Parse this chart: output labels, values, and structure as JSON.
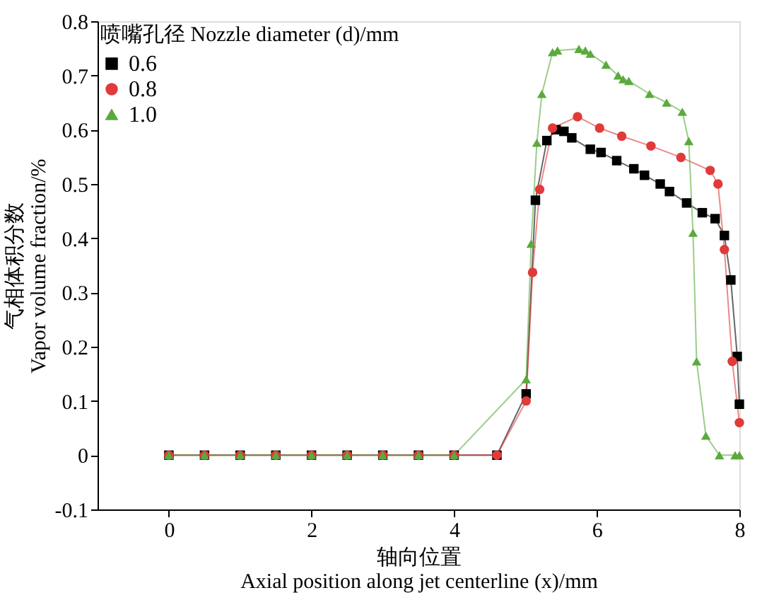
{
  "chart_data": {
    "type": "line",
    "xlabel": "轴向位置\nAxial position along jet centerline (x)/mm",
    "ylabel": "气相体积分数\nVapor volume fraction/%",
    "legend_title": "喷嘴孔径 Nozzle diameter (d)/mm",
    "xlim": [
      -1,
      8
    ],
    "xticks": [
      0,
      2,
      4,
      6,
      8
    ],
    "ylim": [
      -0.1,
      0.8
    ],
    "yticks": [
      -0.1,
      0,
      0.1,
      0.2,
      0.3,
      0.4,
      0.5,
      0.6,
      0.7,
      0.8
    ],
    "grid": false,
    "legend": "top left",
    "line_style": "solid",
    "series": [
      {
        "name": "0.6",
        "color": "#000000",
        "marker": "square",
        "x": [
          0,
          0.5,
          1,
          1.5,
          2,
          2.5,
          3,
          3.5,
          4,
          4.6,
          5.01,
          5.14,
          5.3,
          5.43,
          5.54,
          5.65,
          5.91,
          6.06,
          6.28,
          6.52,
          6.67,
          6.89,
          7.02,
          7.26,
          7.48,
          7.66,
          7.79,
          7.88,
          7.97,
          8.0
        ],
        "values": [
          0,
          0,
          0,
          0,
          0,
          0,
          0,
          0,
          0,
          0,
          0.113,
          0.47,
          0.58,
          0.6,
          0.597,
          0.585,
          0.564,
          0.558,
          0.543,
          0.528,
          0.516,
          0.5,
          0.486,
          0.465,
          0.447,
          0.436,
          0.405,
          0.323,
          0.182,
          0.094
        ]
      },
      {
        "name": "0.8",
        "color": "#e03a3a",
        "marker": "circle",
        "x": [
          0,
          0.5,
          1,
          1.5,
          2,
          2.5,
          3,
          3.5,
          4,
          4.6,
          5.01,
          5.1,
          5.2,
          5.38,
          5.73,
          6.04,
          6.35,
          6.76,
          7.18,
          7.59,
          7.7,
          7.79,
          7.9,
          8.0
        ],
        "values": [
          0,
          0,
          0,
          0,
          0,
          0,
          0,
          0,
          0,
          0,
          0.1,
          0.337,
          0.49,
          0.603,
          0.624,
          0.603,
          0.588,
          0.57,
          0.549,
          0.525,
          0.5,
          0.379,
          0.173,
          0.06
        ]
      },
      {
        "name": "1.0",
        "color": "#5aaa3c",
        "marker": "triangle",
        "x": [
          0,
          0.5,
          1,
          1.5,
          2,
          2.5,
          3,
          3.5,
          4,
          5.01,
          5.08,
          5.16,
          5.23,
          5.38,
          5.45,
          5.75,
          5.84,
          5.91,
          6.13,
          6.3,
          6.37,
          6.45,
          6.74,
          6.98,
          7.2,
          7.29,
          7.35,
          7.4,
          7.53,
          7.72,
          7.94,
          8.0
        ],
        "values": [
          0,
          0,
          0,
          0,
          0,
          0,
          0,
          0,
          0,
          0.14,
          0.39,
          0.576,
          0.666,
          0.743,
          0.746,
          0.749,
          0.746,
          0.74,
          0.72,
          0.7,
          0.693,
          0.69,
          0.666,
          0.65,
          0.633,
          0.579,
          0.41,
          0.173,
          0.036,
          0,
          0,
          0
        ]
      }
    ]
  }
}
